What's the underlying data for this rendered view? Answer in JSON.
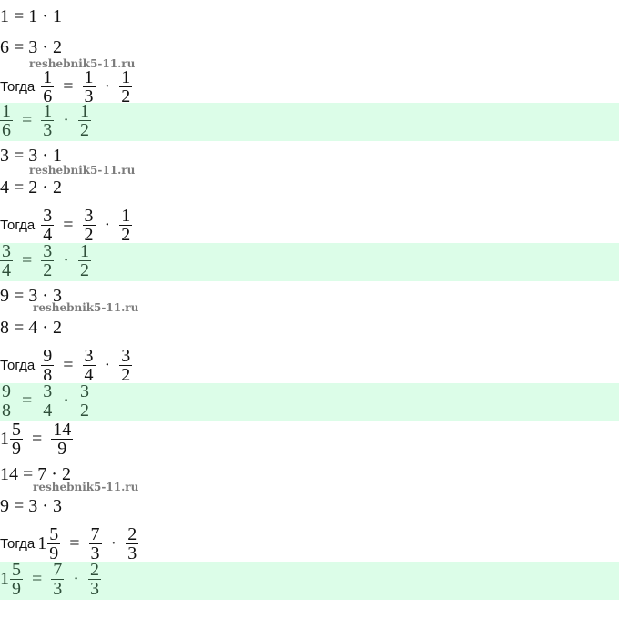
{
  "watermark": "reshebnik5-11.ru",
  "then_label": "Тогда",
  "ops": {
    "eq": "=",
    "dot": "·"
  },
  "b1": {
    "p1": "1 = 1 · 1",
    "p2": "6 = 3 · 2",
    "lhs": {
      "n": "1",
      "d": "6"
    },
    "r1": {
      "n": "1",
      "d": "3"
    },
    "r2": {
      "n": "1",
      "d": "2"
    }
  },
  "b2": {
    "p1": "3 = 3 · 1",
    "p2": "4 = 2 · 2",
    "lhs": {
      "n": "3",
      "d": "4"
    },
    "r1": {
      "n": "3",
      "d": "2"
    },
    "r2": {
      "n": "1",
      "d": "2"
    }
  },
  "b3": {
    "p1": "9 = 3 · 3",
    "p2": "8 = 4 · 2",
    "lhs": {
      "n": "9",
      "d": "8"
    },
    "r1": {
      "n": "3",
      "d": "4"
    },
    "r2": {
      "n": "3",
      "d": "2"
    }
  },
  "b4": {
    "conv_whole": "1",
    "conv": {
      "n": "5",
      "d": "9"
    },
    "conv_res": {
      "n": "14",
      "d": "9"
    },
    "p1": "14 = 7 · 2",
    "p2": "9 = 3 · 3",
    "whole": "1",
    "lhs": {
      "n": "5",
      "d": "9"
    },
    "r1": {
      "n": "7",
      "d": "3"
    },
    "r2": {
      "n": "2",
      "d": "3"
    }
  },
  "highlight_color": "#dcfde8"
}
